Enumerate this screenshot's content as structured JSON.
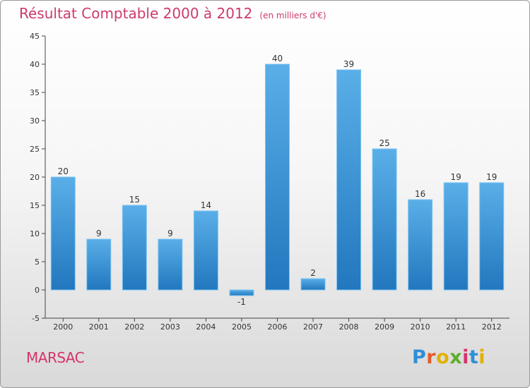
{
  "header": {
    "title": "Résultat Comptable 2000 à 2012",
    "unit": "(en milliers d'€)"
  },
  "footer": {
    "city": "MARSAC",
    "logo_text": "Proxiti"
  },
  "colors": {
    "title": "#cc3a6e",
    "city": "#d6336c",
    "bar_top": "#5aafe8",
    "bar_bottom": "#2277be",
    "axis": "#444444",
    "grid": "#d8d8d8"
  },
  "logo_colors": [
    "#2f8fd8",
    "#e55a2b",
    "#e2b100",
    "#5cae2e",
    "#d6336c",
    "#2f8fd8",
    "#e2b100"
  ],
  "chart_data": {
    "type": "bar",
    "title": "Résultat Comptable 2000 à 2012",
    "subtitle": "(en milliers d'€)",
    "xlabel": "",
    "ylabel": "",
    "categories": [
      "2000",
      "2001",
      "2002",
      "2003",
      "2004",
      "2005",
      "2006",
      "2007",
      "2008",
      "2009",
      "2010",
      "2011",
      "2012"
    ],
    "values": [
      20,
      9,
      15,
      9,
      14,
      -1,
      40,
      2,
      39,
      25,
      16,
      19,
      19
    ],
    "value_labels": [
      "20",
      "9",
      "15",
      "9",
      "14",
      "-1",
      "40",
      "2",
      "39",
      "25",
      "16",
      "19",
      "19"
    ],
    "ylim": [
      -5,
      45
    ],
    "yticks": [
      -5,
      0,
      5,
      10,
      15,
      20,
      25,
      30,
      35,
      40,
      45
    ],
    "ytick_labels": [
      "-5",
      "0",
      "5",
      "10",
      "15",
      "20",
      "25",
      "30",
      "35",
      "40",
      "45"
    ],
    "grid": false,
    "legend": "none"
  }
}
